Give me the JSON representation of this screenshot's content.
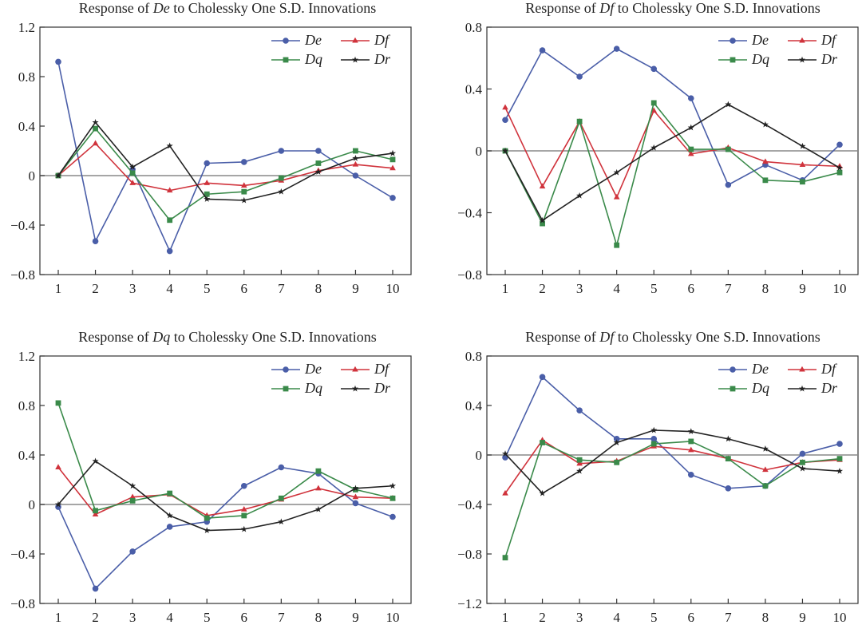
{
  "figure": {
    "colors": {
      "De": "#4a5ea8",
      "Df": "#d0333c",
      "Dq": "#3a8a4a",
      "Dr": "#222222",
      "zero_line": "#8a8a8a"
    }
  },
  "chart_data": [
    {
      "type": "line",
      "title_prefix": "Response of",
      "title_var": "De",
      "title_suffix": "to Cholessky One S.D. Innovations",
      "categories": [
        "1",
        "2",
        "3",
        "4",
        "5",
        "6",
        "7",
        "8",
        "9",
        "10"
      ],
      "y_ticks": [
        "1.2",
        "0.8",
        "0.4",
        "0",
        "−0.4",
        "−0.8"
      ],
      "ylim": [
        -0.8,
        1.2
      ],
      "tick_step": 0.4,
      "series": [
        {
          "name": "De",
          "marker": "circle",
          "values": [
            0.92,
            -0.53,
            0.05,
            -0.61,
            0.1,
            0.11,
            0.2,
            0.2,
            0.0,
            -0.18
          ]
        },
        {
          "name": "Df",
          "marker": "triangle",
          "values": [
            0.0,
            0.26,
            -0.06,
            -0.12,
            -0.06,
            -0.08,
            -0.04,
            0.04,
            0.09,
            0.06
          ]
        },
        {
          "name": "Dq",
          "marker": "square",
          "values": [
            0.0,
            0.38,
            0.02,
            -0.36,
            -0.15,
            -0.13,
            -0.02,
            0.1,
            0.2,
            0.13
          ]
        },
        {
          "name": "Dr",
          "marker": "star",
          "values": [
            0.0,
            0.43,
            0.07,
            0.24,
            -0.19,
            -0.2,
            -0.13,
            0.03,
            0.14,
            0.18
          ]
        }
      ]
    },
    {
      "type": "line",
      "title_prefix": "Response of",
      "title_var": "Df",
      "title_suffix": "to Cholessky One S.D. Innovations",
      "categories": [
        "1",
        "2",
        "3",
        "4",
        "5",
        "6",
        "7",
        "8",
        "9",
        "10"
      ],
      "y_ticks": [
        "0.8",
        "0.4",
        "0",
        "−0.4",
        "−0.8"
      ],
      "ylim": [
        -0.8,
        0.8
      ],
      "tick_step": 0.4,
      "series": [
        {
          "name": "De",
          "marker": "circle",
          "values": [
            0.2,
            0.65,
            0.48,
            0.66,
            0.53,
            0.34,
            -0.22,
            -0.09,
            -0.19,
            0.04
          ]
        },
        {
          "name": "Df",
          "marker": "triangle",
          "values": [
            0.28,
            -0.23,
            0.19,
            -0.3,
            0.26,
            -0.02,
            0.02,
            -0.07,
            -0.09,
            -0.1
          ]
        },
        {
          "name": "Dq",
          "marker": "square",
          "values": [
            0.0,
            -0.47,
            0.19,
            -0.61,
            0.31,
            0.01,
            0.01,
            -0.19,
            -0.2,
            -0.14
          ]
        },
        {
          "name": "Dr",
          "marker": "star",
          "values": [
            0.0,
            -0.45,
            -0.29,
            -0.14,
            0.02,
            0.15,
            0.3,
            0.17,
            0.03,
            -0.11
          ]
        }
      ]
    },
    {
      "type": "line",
      "title_prefix": "Response of",
      "title_var": "Dq",
      "title_suffix": "to Cholessky One S.D. Innovations",
      "categories": [
        "1",
        "2",
        "3",
        "4",
        "5",
        "6",
        "7",
        "8",
        "9",
        "10"
      ],
      "y_ticks": [
        "1.2",
        "0.8",
        "0.4",
        "0",
        "−0.4",
        "−0.8"
      ],
      "ylim": [
        -0.8,
        1.2
      ],
      "tick_step": 0.4,
      "series": [
        {
          "name": "De",
          "marker": "circle",
          "values": [
            -0.02,
            -0.68,
            -0.38,
            -0.18,
            -0.14,
            0.15,
            0.3,
            0.25,
            0.01,
            -0.1
          ]
        },
        {
          "name": "Df",
          "marker": "triangle",
          "values": [
            0.3,
            -0.08,
            0.06,
            0.08,
            -0.09,
            -0.04,
            0.04,
            0.13,
            0.06,
            0.05
          ]
        },
        {
          "name": "Dq",
          "marker": "square",
          "values": [
            0.82,
            -0.05,
            0.03,
            0.09,
            -0.11,
            -0.09,
            0.05,
            0.27,
            0.12,
            0.05
          ]
        },
        {
          "name": "Dr",
          "marker": "star",
          "values": [
            0.0,
            0.35,
            0.15,
            -0.09,
            -0.21,
            -0.2,
            -0.14,
            -0.04,
            0.13,
            0.15
          ]
        }
      ]
    },
    {
      "type": "line",
      "title_prefix": "Response of",
      "title_var": "Df",
      "title_suffix": "to Cholessky One S.D. Innovations",
      "categories": [
        "1",
        "2",
        "3",
        "4",
        "5",
        "6",
        "7",
        "8",
        "9",
        "10"
      ],
      "y_ticks": [
        "0.8",
        "0.4",
        "0",
        "−0.4",
        "−0.8",
        "−1.2"
      ],
      "ylim": [
        -1.2,
        0.8
      ],
      "tick_step": 0.4,
      "series": [
        {
          "name": "De",
          "marker": "circle",
          "values": [
            -0.02,
            0.63,
            0.36,
            0.13,
            0.13,
            -0.16,
            -0.27,
            -0.25,
            0.01,
            0.09
          ]
        },
        {
          "name": "Df",
          "marker": "triangle",
          "values": [
            -0.31,
            0.12,
            -0.07,
            -0.05,
            0.07,
            0.04,
            -0.03,
            -0.12,
            -0.06,
            -0.04
          ]
        },
        {
          "name": "Dq",
          "marker": "square",
          "values": [
            -0.83,
            0.1,
            -0.04,
            -0.06,
            0.09,
            0.11,
            -0.03,
            -0.25,
            -0.06,
            -0.03
          ]
        },
        {
          "name": "Dr",
          "marker": "star",
          "values": [
            0.01,
            -0.31,
            -0.13,
            0.1,
            0.2,
            0.19,
            0.13,
            0.05,
            -0.11,
            -0.13
          ]
        }
      ]
    }
  ]
}
